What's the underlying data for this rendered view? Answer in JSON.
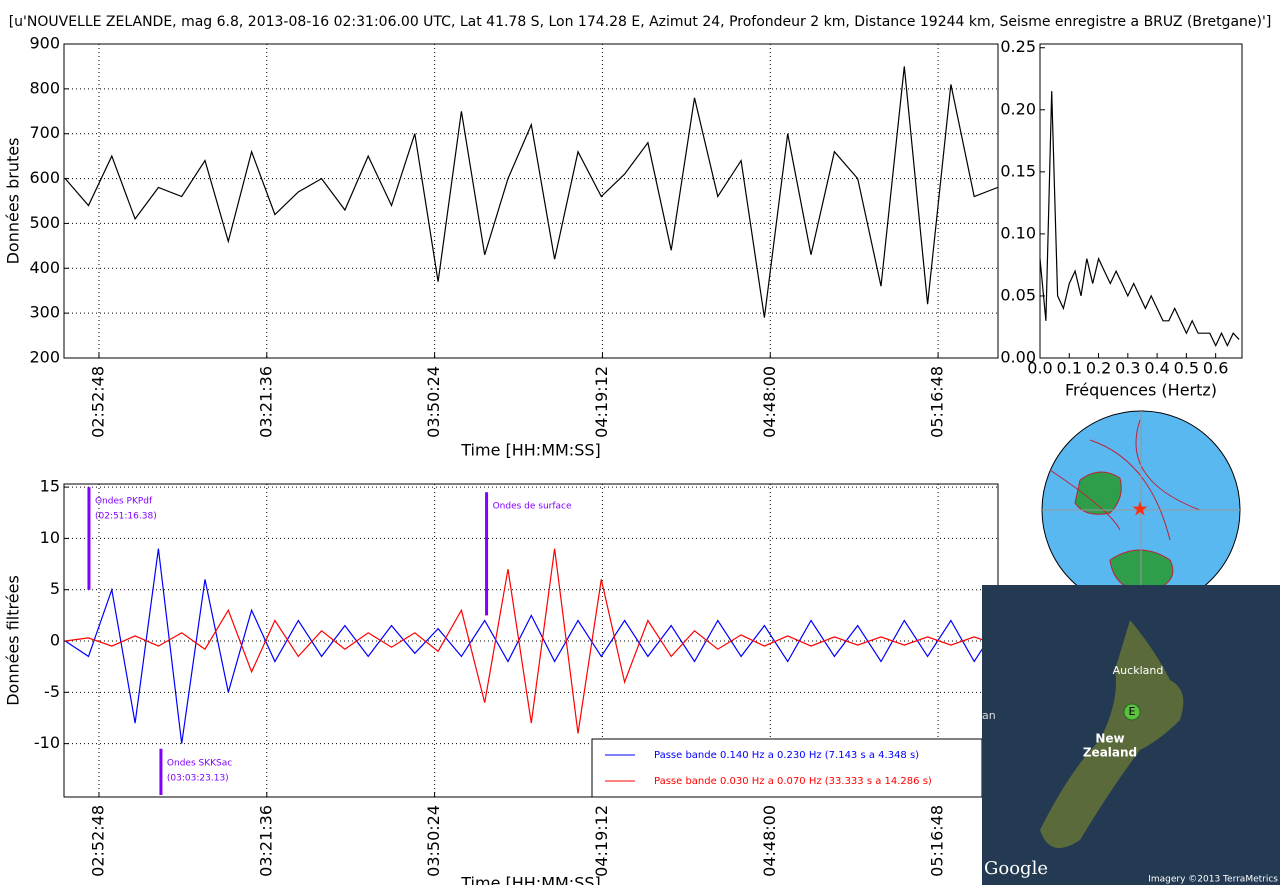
{
  "chart_data": [
    {
      "type": "line",
      "title": "[u'NOUVELLE ZELANDE, mag 6.8, 2013-08-16 02:31:06.00 UTC, Lat 41.78 S, Lon 174.28 E, Azimut 24, Profondeur 2 km, Distance 19244 km, Seisme enregistre a BRUZ (Bretgane)']",
      "xlabel": "Time [HH:MM:SS]",
      "ylabel": "Données brutes",
      "x": [
        "02:47:00",
        "02:51:00",
        "02:55:00",
        "02:59:00",
        "03:03:00",
        "03:07:00",
        "03:11:00",
        "03:15:00",
        "03:19:00",
        "03:23:00",
        "03:27:00",
        "03:31:00",
        "03:35:00",
        "03:39:00",
        "03:43:00",
        "03:47:00",
        "03:51:00",
        "03:55:00",
        "03:59:00",
        "04:03:00",
        "04:07:00",
        "04:11:00",
        "04:15:00",
        "04:19:00",
        "04:23:00",
        "04:27:00",
        "04:31:00",
        "04:35:00",
        "04:39:00",
        "04:43:00",
        "04:47:00",
        "04:51:00",
        "04:55:00",
        "04:59:00",
        "05:03:00",
        "05:07:00",
        "05:11:00",
        "05:15:00",
        "05:19:00",
        "05:23:00",
        "05:27:00"
      ],
      "values": [
        600,
        540,
        650,
        510,
        580,
        560,
        640,
        460,
        660,
        520,
        570,
        600,
        530,
        650,
        540,
        700,
        370,
        750,
        430,
        600,
        720,
        420,
        660,
        560,
        610,
        680,
        440,
        780,
        560,
        640,
        290,
        700,
        430,
        660,
        600,
        360,
        850,
        320,
        810,
        560,
        580
      ],
      "color": "#000000",
      "xlim": [
        "02:46:48",
        "05:27:05"
      ],
      "xticks": [
        "02:52:48",
        "03:21:36",
        "03:50:24",
        "04:19:12",
        "04:48:00",
        "05:16:48"
      ],
      "ylim": [
        200,
        900
      ],
      "yticks": [
        200,
        300,
        400,
        500,
        600,
        700,
        800,
        900
      ],
      "grid": true
    },
    {
      "type": "line",
      "xlabel": "Fréquences (Hertz)",
      "x": [
        0,
        0.02,
        0.04,
        0.06,
        0.08,
        0.1,
        0.12,
        0.14,
        0.16,
        0.18,
        0.2,
        0.22,
        0.24,
        0.26,
        0.28,
        0.3,
        0.32,
        0.34,
        0.36,
        0.38,
        0.4,
        0.42,
        0.44,
        0.46,
        0.48,
        0.5,
        0.52,
        0.54,
        0.56,
        0.58,
        0.6,
        0.62,
        0.64,
        0.66,
        0.68
      ],
      "values": [
        0.08,
        0.03,
        0.215,
        0.05,
        0.04,
        0.06,
        0.07,
        0.05,
        0.08,
        0.06,
        0.08,
        0.07,
        0.06,
        0.07,
        0.06,
        0.05,
        0.06,
        0.05,
        0.04,
        0.05,
        0.04,
        0.03,
        0.03,
        0.04,
        0.03,
        0.02,
        0.03,
        0.02,
        0.02,
        0.02,
        0.01,
        0.02,
        0.01,
        0.02,
        0.015
      ],
      "color": "#000000",
      "xlim": [
        0,
        0.69
      ],
      "xticks": [
        {
          "value": 0,
          "label": "0.0"
        },
        0.1,
        0.2,
        0.3,
        0.4,
        0.5,
        0.6
      ],
      "ylim": [
        0,
        0.253
      ],
      "yticks": [
        {
          "value": 0,
          "label": "0.00"
        },
        {
          "value": 0.05,
          "label": "0.05"
        },
        {
          "value": 0.1,
          "label": "0.10"
        },
        {
          "value": 0.15,
          "label": "0.15"
        },
        {
          "value": 0.2,
          "label": "0.20"
        },
        {
          "value": 0.25,
          "label": "0.25"
        }
      ],
      "grid": false
    },
    {
      "type": "line",
      "xlabel": "Time [HH:MM:SS]",
      "ylabel": "Données filtrées",
      "x": [
        "02:47:00",
        "02:51:00",
        "02:55:00",
        "02:59:00",
        "03:03:00",
        "03:07:00",
        "03:11:00",
        "03:15:00",
        "03:19:00",
        "03:23:00",
        "03:27:00",
        "03:31:00",
        "03:35:00",
        "03:39:00",
        "03:43:00",
        "03:47:00",
        "03:51:00",
        "03:55:00",
        "03:59:00",
        "04:03:00",
        "04:07:00",
        "04:11:00",
        "04:15:00",
        "04:19:00",
        "04:23:00",
        "04:27:00",
        "04:31:00",
        "04:35:00",
        "04:39:00",
        "04:43:00",
        "04:47:00",
        "04:51:00",
        "04:55:00",
        "04:59:00",
        "05:03:00",
        "05:07:00",
        "05:11:00",
        "05:15:00",
        "05:19:00",
        "05:23:00",
        "05:27:00"
      ],
      "series": [
        {
          "name": "Passe bande 0.140 Hz a 0.230 Hz (7.143 s a 4.348 s)",
          "color": "#0000ff",
          "values": [
            0,
            -1.5,
            5,
            -8,
            9,
            -10,
            6,
            -5,
            3,
            -2,
            2,
            -1.5,
            1.5,
            -1.5,
            1.5,
            -1.2,
            1.2,
            -1.5,
            2,
            -2,
            2.5,
            -2,
            2,
            -1.5,
            2,
            -1.5,
            1.5,
            -2,
            2,
            -1.5,
            1.5,
            -2,
            2,
            -1.5,
            1.5,
            -2,
            2,
            -1.5,
            2,
            -2,
            1.5
          ]
        },
        {
          "name": "Passe bande 0.030 Hz a 0.070 Hz (33.333 s a 14.286 s)",
          "color": "#ff0000",
          "values": [
            0,
            0.3,
            -0.5,
            0.5,
            -0.5,
            0.8,
            -0.8,
            3,
            -3,
            2,
            -1.5,
            1,
            -0.8,
            0.8,
            -0.6,
            0.8,
            -1,
            3,
            -6,
            7,
            -8,
            9,
            -9,
            6,
            -4,
            2,
            -1.5,
            1,
            -0.8,
            0.6,
            -0.5,
            0.5,
            -0.5,
            0.4,
            -0.4,
            0.4,
            -0.4,
            0.4,
            -0.4,
            0.4,
            -0.4
          ]
        }
      ],
      "xlim": [
        "02:46:48",
        "05:27:05"
      ],
      "xticks": [
        "02:52:48",
        "03:21:36",
        "03:50:24",
        "04:19:12",
        "04:48:00",
        "05:16:48"
      ],
      "ylim": [
        -15.2,
        15.3
      ],
      "yticks": [
        -10,
        -5,
        0,
        5,
        10,
        15
      ],
      "grid": true,
      "legend": "lower right",
      "annotations": [
        {
          "lines": [
            "Ondes PKPdf",
            "(02:51:16.38)"
          ],
          "x": "02:51:05",
          "y": [
            15,
            5
          ],
          "color": "#8000ff"
        },
        {
          "lines": [
            "Ondes SKKSac",
            "(03:03:23.13)"
          ],
          "x": "03:03:26",
          "y": [
            -10.5,
            -15
          ],
          "color": "#8000ff"
        },
        {
          "lines": [
            "Ondes de surface"
          ],
          "x": "03:59:19",
          "y": [
            14.5,
            2.5
          ],
          "color": "#8000ff"
        }
      ]
    }
  ],
  "map": {
    "city": "Auckland",
    "region": [
      "New",
      "Zealand"
    ],
    "marker": "E",
    "cut_label": "an",
    "brand": "Google",
    "credit": "Imagery ©2013 TerraMetrics"
  }
}
